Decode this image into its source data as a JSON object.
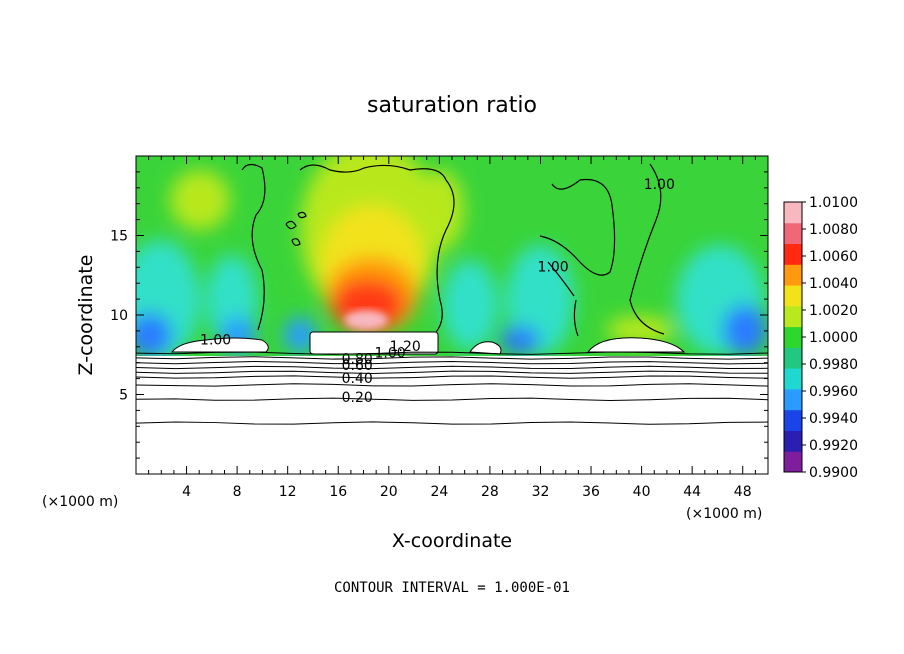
{
  "chart_data": {
    "type": "heatmap",
    "title": "saturation ratio",
    "xlabel": "X-coordinate",
    "ylabel": "Z-coordinate",
    "x_unit_left": "(×1000 m)",
    "x_unit_right": "(×1000 m)",
    "xlim": [
      0,
      50
    ],
    "ylim": [
      0,
      20
    ],
    "x_ticks": [
      4,
      8,
      12,
      16,
      20,
      24,
      28,
      32,
      36,
      40,
      44,
      48
    ],
    "y_ticks": [
      5,
      10,
      15
    ],
    "colorbar": {
      "labels": [
        "1.0100",
        "1.0080",
        "1.0060",
        "1.0040",
        "1.0020",
        "1.0000",
        "0.9980",
        "0.9960",
        "0.9940",
        "0.9920",
        "0.9900"
      ],
      "range": [
        0.99,
        1.01
      ],
      "colors": [
        "#7e1e9c",
        "#2a1fb0",
        "#1a44e8",
        "#2a9cff",
        "#20d8d0",
        "#20c880",
        "#2ed62e",
        "#b8e81e",
        "#f2e21a",
        "#ff9a10",
        "#ff2a10",
        "#f06878",
        "#f8b8c0"
      ]
    },
    "contour_labels": [
      {
        "text": "1.00",
        "x": 6.3,
        "z": 8.2
      },
      {
        "text": "1.20",
        "x": 21.3,
        "z": 7.8
      },
      {
        "text": "1.00",
        "x": 20.1,
        "z": 7.4
      },
      {
        "text": "0.80",
        "x": 17.5,
        "z": 7.0
      },
      {
        "text": "0.60",
        "x": 17.5,
        "z": 6.6
      },
      {
        "text": "0.40",
        "x": 17.5,
        "z": 5.8
      },
      {
        "text": "0.20",
        "x": 17.5,
        "z": 4.6
      },
      {
        "text": "1.00",
        "x": 33.0,
        "z": 12.8
      },
      {
        "text": "1.00",
        "x": 41.4,
        "z": 18.0
      }
    ],
    "grid": false,
    "legend": "colorbar-right"
  },
  "footer": {
    "contour_interval": "CONTOUR INTERVAL = 1.000E-01"
  }
}
